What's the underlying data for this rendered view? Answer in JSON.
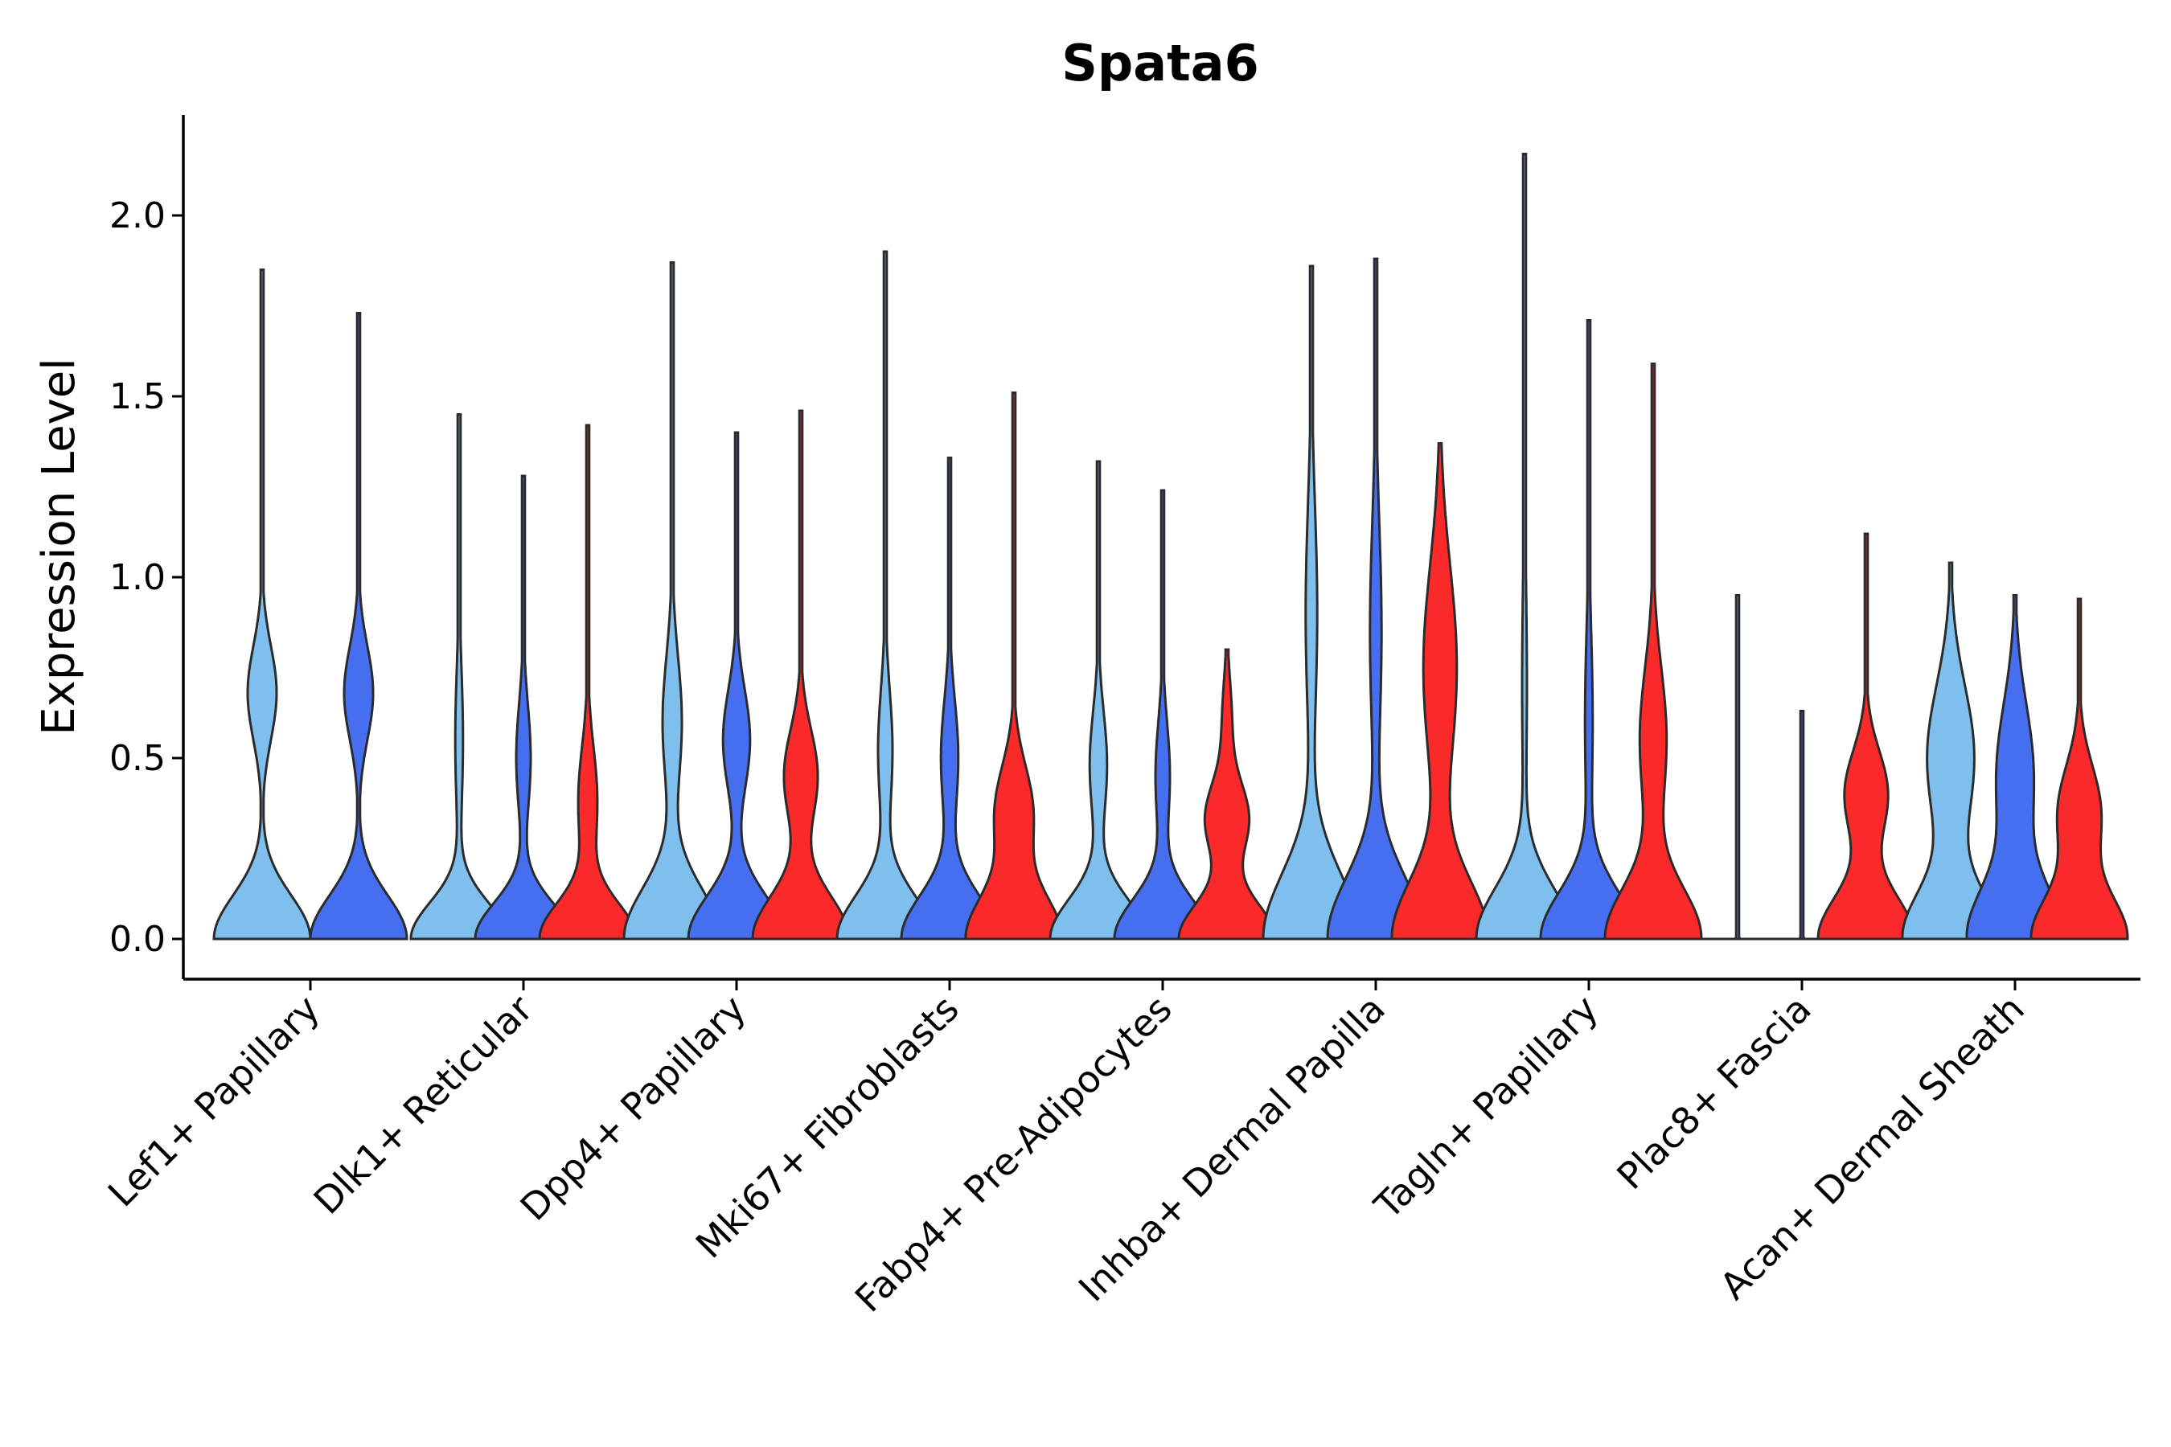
{
  "chart_data": {
    "type": "violin",
    "title": "Spata6",
    "xlabel": "",
    "ylabel": "Expression Level",
    "ylim": [
      -0.11,
      2.28
    ],
    "yticks": [
      0.0,
      0.5,
      1.0,
      1.5,
      2.0
    ],
    "ytick_labels": [
      "0.0",
      "0.5",
      "1.0",
      "1.5",
      "2.0"
    ],
    "grid": false,
    "series_colors": [
      "#7fbfed",
      "#466ff0",
      "#fb2a2a"
    ],
    "categories": [
      "Lef1+ Papillary",
      "Dlk1+ Reticular",
      "Dpp4+ Papillary",
      "Mki67+ Fibroblasts",
      "Fabp4+ Pre-Adipocytes",
      "Inhba+ Dermal Papilla",
      "Tagln+ Papillary",
      "Plac8+ Fascia",
      "Acan+ Dermal Sheath"
    ],
    "groups": [
      {
        "category": "Lef1+ Papillary",
        "violins": [
          {
            "series": 0,
            "max": 1.85,
            "peaks": [
              [
                0,
                1.0,
                0.12
              ],
              [
                0.68,
                0.3,
                0.13
              ]
            ]
          },
          {
            "series": 1,
            "max": 1.73,
            "peaks": [
              [
                0,
                1.0,
                0.12
              ],
              [
                0.68,
                0.3,
                0.13
              ]
            ]
          }
        ]
      },
      {
        "category": "Dlk1+ Reticular",
        "violins": [
          {
            "series": 0,
            "max": 1.45,
            "peaks": [
              [
                0,
                1.0,
                0.1
              ],
              [
                0.55,
                0.08,
                0.2
              ]
            ]
          },
          {
            "series": 1,
            "max": 1.28,
            "peaks": [
              [
                0,
                1.0,
                0.1
              ],
              [
                0.5,
                0.15,
                0.15
              ]
            ]
          },
          {
            "series": 2,
            "max": 1.42,
            "peaks": [
              [
                0,
                1.0,
                0.1
              ],
              [
                0.38,
                0.2,
                0.15
              ]
            ]
          }
        ]
      },
      {
        "category": "Dpp4+ Papillary",
        "violins": [
          {
            "series": 0,
            "max": 1.87,
            "peaks": [
              [
                0,
                1.0,
                0.14
              ],
              [
                0.6,
                0.2,
                0.18
              ]
            ]
          },
          {
            "series": 1,
            "max": 1.4,
            "peaks": [
              [
                0,
                1.0,
                0.12
              ],
              [
                0.55,
                0.28,
                0.14
              ]
            ]
          },
          {
            "series": 2,
            "max": 1.46,
            "peaks": [
              [
                0,
                1.0,
                0.12
              ],
              [
                0.45,
                0.35,
                0.13
              ]
            ]
          }
        ]
      },
      {
        "category": "Mki67+ Fibroblasts",
        "violins": [
          {
            "series": 0,
            "max": 1.9,
            "peaks": [
              [
                0,
                1.0,
                0.12
              ],
              [
                0.52,
                0.15,
                0.17
              ]
            ]
          },
          {
            "series": 1,
            "max": 1.33,
            "peaks": [
              [
                0,
                1.0,
                0.12
              ],
              [
                0.5,
                0.18,
                0.16
              ]
            ]
          },
          {
            "series": 2,
            "max": 1.51,
            "peaks": [
              [
                0,
                1.0,
                0.12
              ],
              [
                0.35,
                0.4,
                0.13
              ]
            ]
          }
        ]
      },
      {
        "category": "Fabp4+ Pre-Adipocytes",
        "violins": [
          {
            "series": 0,
            "max": 1.32,
            "peaks": [
              [
                0,
                1.0,
                0.11
              ],
              [
                0.48,
                0.18,
                0.15
              ]
            ]
          },
          {
            "series": 1,
            "max": 1.24,
            "peaks": [
              [
                0,
                1.0,
                0.11
              ],
              [
                0.45,
                0.15,
                0.15
              ]
            ]
          },
          {
            "series": 2,
            "max": 0.8,
            "peaks": [
              [
                0,
                1.0,
                0.1
              ],
              [
                0.33,
                0.45,
                0.1
              ],
              [
                0.6,
                0.1,
                0.12
              ]
            ]
          }
        ]
      },
      {
        "category": "Inhba+ Dermal Papilla",
        "violins": [
          {
            "series": 0,
            "max": 1.86,
            "peaks": [
              [
                0,
                1.0,
                0.18
              ],
              [
                0.9,
                0.12,
                0.3
              ]
            ]
          },
          {
            "series": 1,
            "max": 1.88,
            "peaks": [
              [
                0,
                1.0,
                0.17
              ],
              [
                0.85,
                0.12,
                0.3
              ]
            ]
          },
          {
            "series": 2,
            "max": 1.37,
            "peaks": [
              [
                0,
                1.0,
                0.16
              ],
              [
                0.75,
                0.35,
                0.28
              ]
            ]
          }
        ]
      },
      {
        "category": "Tagln+ Papillary",
        "violins": [
          {
            "series": 0,
            "max": 2.17,
            "peaks": [
              [
                0,
                1.0,
                0.14
              ],
              [
                0.7,
                0.05,
                0.3
              ]
            ]
          },
          {
            "series": 1,
            "max": 1.71,
            "peaks": [
              [
                0,
                1.0,
                0.13
              ],
              [
                0.6,
                0.08,
                0.25
              ]
            ]
          },
          {
            "series": 2,
            "max": 1.59,
            "peaks": [
              [
                0,
                1.0,
                0.14
              ],
              [
                0.55,
                0.28,
                0.2
              ]
            ]
          }
        ]
      },
      {
        "category": "Plac8+ Fascia",
        "violins": [
          {
            "series": 0,
            "max": 0.95,
            "peaks": [
              [
                0,
                1.0,
                0.005
              ]
            ],
            "flat": true
          },
          {
            "series": 1,
            "max": 0.63,
            "peaks": [
              [
                0,
                1.0,
                0.005
              ]
            ],
            "flat": true
          },
          {
            "series": 2,
            "max": 1.12,
            "peaks": [
              [
                0,
                1.0,
                0.12
              ],
              [
                0.4,
                0.45,
                0.12
              ]
            ]
          }
        ]
      },
      {
        "category": "Acan+ Dermal Sheath",
        "violins": [
          {
            "series": 0,
            "max": 1.04,
            "peaks": [
              [
                0,
                1.0,
                0.13
              ],
              [
                0.5,
                0.5,
                0.2
              ]
            ]
          },
          {
            "series": 1,
            "max": 0.95,
            "peaks": [
              [
                0,
                1.0,
                0.14
              ],
              [
                0.45,
                0.4,
                0.2
              ]
            ]
          },
          {
            "series": 2,
            "max": 0.94,
            "peaks": [
              [
                0,
                1.0,
                0.12
              ],
              [
                0.35,
                0.45,
                0.13
              ]
            ]
          }
        ]
      }
    ]
  }
}
